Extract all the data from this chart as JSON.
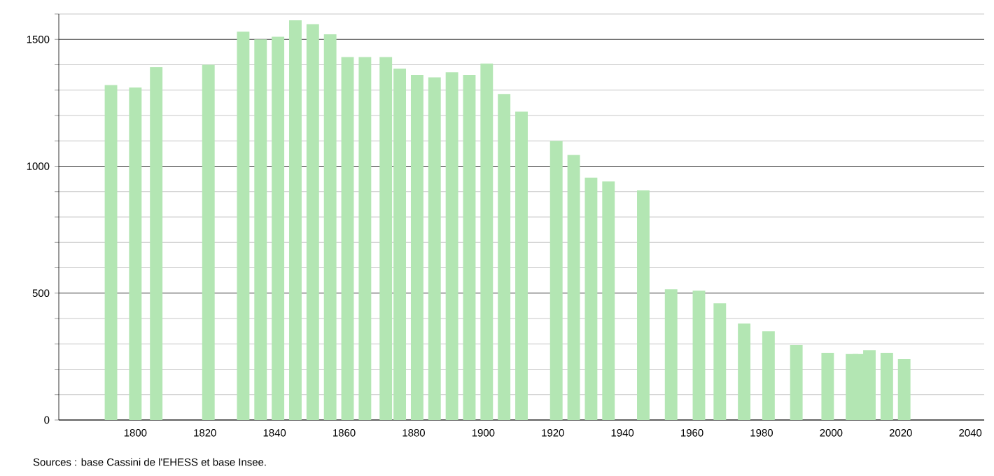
{
  "chart_data": {
    "type": "bar",
    "x": [
      1793,
      1800,
      1806,
      1821,
      1831,
      1836,
      1841,
      1846,
      1851,
      1856,
      1861,
      1866,
      1872,
      1876,
      1881,
      1886,
      1891,
      1896,
      1901,
      1906,
      1911,
      1921,
      1926,
      1931,
      1936,
      1946,
      1954,
      1962,
      1968,
      1975,
      1982,
      1990,
      1999,
      2006,
      2008,
      2011,
      2016,
      2021
    ],
    "values": [
      1320,
      1310,
      1390,
      1400,
      1530,
      1500,
      1510,
      1575,
      1560,
      1520,
      1430,
      1430,
      1430,
      1385,
      1360,
      1350,
      1370,
      1360,
      1405,
      1285,
      1215,
      1100,
      1045,
      955,
      940,
      905,
      515,
      510,
      460,
      380,
      350,
      295,
      265,
      260,
      260,
      275,
      265,
      240
    ],
    "color": "#b3e6b3",
    "xlim": [
      1778,
      2044
    ],
    "xticks": [
      1800,
      1820,
      1840,
      1860,
      1880,
      1900,
      1920,
      1940,
      1960,
      1980,
      2000,
      2020,
      2040
    ],
    "ylim": [
      0,
      1600
    ],
    "yticks": [
      0,
      {
        "value": 100,
        "label": null
      },
      {
        "value": 200,
        "label": null
      },
      {
        "value": 300,
        "label": null
      },
      {
        "value": 400,
        "label": null
      },
      500,
      {
        "value": 600,
        "label": null
      },
      {
        "value": 700,
        "label": null
      },
      {
        "value": 800,
        "label": null
      },
      {
        "value": 900,
        "label": null
      },
      1000,
      {
        "value": 1100,
        "label": null
      },
      {
        "value": 1200,
        "label": null
      },
      {
        "value": 1300,
        "label": null
      },
      {
        "value": 1400,
        "label": null
      },
      1500,
      {
        "value": 1600,
        "label": null
      }
    ],
    "grid": "y",
    "annotations": [
      "Sources : base Cassini de l'EHESS et base Insee."
    ]
  }
}
